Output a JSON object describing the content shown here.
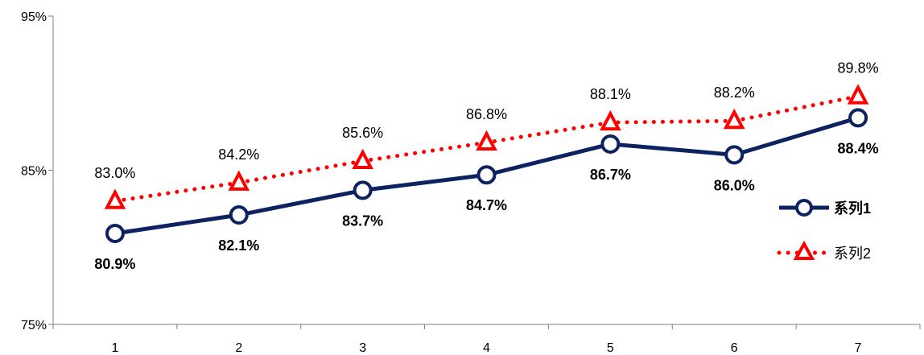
{
  "chart_data": {
    "type": "line",
    "x": [
      1,
      2,
      3,
      4,
      5,
      6,
      7
    ],
    "x_tick_labels": [
      "1",
      "2",
      "3",
      "4",
      "5",
      "6",
      "7"
    ],
    "y_tick_labels": [
      "75%",
      "85%",
      "95%"
    ],
    "ylim": [
      75,
      95
    ],
    "yticks": [
      75,
      85,
      95
    ],
    "grid": false,
    "legend_position": "right",
    "series": [
      {
        "name": "系列1",
        "values": [
          80.9,
          82.1,
          83.7,
          84.7,
          86.7,
          86.0,
          88.4
        ],
        "labels": [
          "80.9%",
          "82.1%",
          "83.7%",
          "84.7%",
          "86.7%",
          "86.0%",
          "88.4%"
        ],
        "color": "#0d2260",
        "line_style": "solid",
        "marker": "circle"
      },
      {
        "name": "系列2",
        "values": [
          83.0,
          84.2,
          85.6,
          86.8,
          88.1,
          88.2,
          89.8
        ],
        "labels": [
          "83.0%",
          "84.2%",
          "85.6%",
          "86.8%",
          "88.1%",
          "88.2%",
          "89.8%"
        ],
        "color": "#ff0000",
        "line_style": "dotted",
        "marker": "triangle"
      }
    ]
  }
}
